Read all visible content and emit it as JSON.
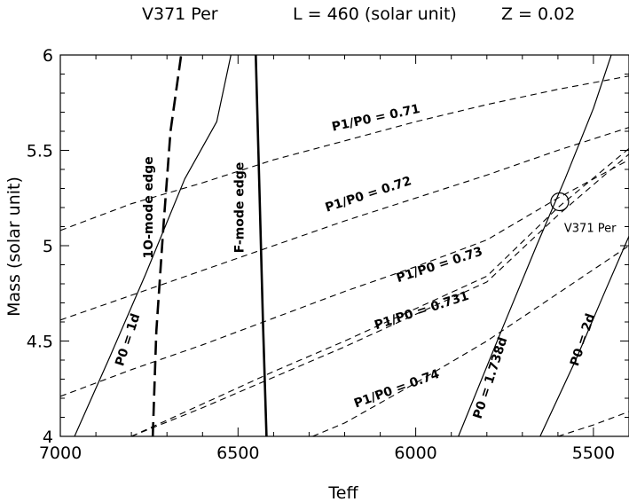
{
  "chart_data": {
    "type": "line",
    "title_parts": [
      "V371 Per",
      "L = 460 (solar unit)",
      "Z = 0.02"
    ],
    "xlabel": "Teff",
    "ylabel": "Mass (solar unit)",
    "xlim": [
      7000,
      5400
    ],
    "ylim": [
      4,
      6
    ],
    "x_reversed": true,
    "x_ticks": [
      7000,
      6500,
      6000,
      5500
    ],
    "x_tick_labels": [
      "7000",
      "6500",
      "6000",
      "5500"
    ],
    "y_ticks": [
      4,
      4.5,
      5,
      5.5,
      6
    ],
    "y_tick_labels": [
      "4",
      "4.5",
      "5",
      "5.5",
      "6"
    ],
    "grid": false,
    "series": [
      {
        "name": "P1/P0 = 0.71",
        "style": "dashed",
        "x": [
          7000,
          6800,
          6600,
          6400,
          6200,
          6000,
          5800,
          5600,
          5400
        ],
        "y": [
          5.08,
          5.22,
          5.33,
          5.45,
          5.55,
          5.65,
          5.74,
          5.82,
          5.89
        ]
      },
      {
        "name": "P1/P0 = 0.72",
        "style": "dashed",
        "x": [
          7000,
          6800,
          6600,
          6400,
          6200,
          6000,
          5800,
          5600,
          5400
        ],
        "y": [
          4.61,
          4.74,
          4.87,
          5.0,
          5.13,
          5.25,
          5.37,
          5.5,
          5.62
        ]
      },
      {
        "name": "P1/P0 = 0.73",
        "style": "dashed",
        "x": [
          7000,
          6800,
          6600,
          6400,
          6200,
          6000,
          5800,
          5600,
          5400
        ],
        "y": [
          4.21,
          4.35,
          4.48,
          4.62,
          4.76,
          4.89,
          5.03,
          5.25,
          5.45
        ]
      },
      {
        "name": "P1/P0 = 0.731",
        "style": "dashed",
        "x": [
          6800,
          6600,
          6400,
          6200,
          6000,
          5800,
          5600,
          5400
        ],
        "y": [
          4.0,
          4.17,
          4.34,
          4.5,
          4.67,
          4.84,
          5.2,
          5.51
        ]
      },
      {
        "name": "P1/P0 = 0.731 (companion)",
        "style": "dashed",
        "x": [
          6800,
          6600,
          6400,
          6200,
          6000,
          5800,
          5600,
          5400
        ],
        "y": [
          4.0,
          4.15,
          4.31,
          4.47,
          4.64,
          4.81,
          5.16,
          5.48
        ]
      },
      {
        "name": "P1/P0 = 0.74",
        "style": "dashed",
        "x": [
          6290,
          6200,
          6000,
          5800,
          5600,
          5400
        ],
        "y": [
          4.0,
          4.07,
          4.28,
          4.5,
          4.75,
          5.0
        ]
      },
      {
        "name": "P1/P0 = 0.74 (lower)",
        "style": "dashed",
        "x": [
          5600,
          5500,
          5400
        ],
        "y": [
          4.0,
          4.06,
          4.13
        ]
      },
      {
        "name": "P0 = 1d",
        "style": "solid",
        "x": [
          6960,
          6860,
          6760,
          6650,
          6560,
          6520
        ],
        "y": [
          4.0,
          4.42,
          4.85,
          5.35,
          5.65,
          6.0
        ]
      },
      {
        "name": "P0 = 1.738d",
        "style": "solid",
        "x": [
          5880,
          5760,
          5660,
          5580,
          5500,
          5450
        ],
        "y": [
          4.0,
          4.55,
          5.0,
          5.35,
          5.72,
          6.0
        ]
      },
      {
        "name": "P0 = 2d",
        "style": "solid",
        "x": [
          5650,
          5550,
          5470,
          5400
        ],
        "y": [
          4.0,
          4.4,
          4.75,
          5.05
        ]
      },
      {
        "name": "1O-mode edge",
        "style": "long-dashed-bold",
        "x": [
          6740,
          6730,
          6710,
          6690,
          6660
        ],
        "y": [
          4.0,
          4.55,
          5.1,
          5.6,
          6.0
        ]
      },
      {
        "name": "F-mode edge",
        "style": "solid-bold",
        "x": [
          6420,
          6430,
          6440,
          6450
        ],
        "y": [
          4.0,
          4.6,
          5.3,
          6.0
        ]
      }
    ],
    "point": {
      "name": "V371 Per",
      "x": 5595,
      "y": 5.23
    },
    "annotations": [
      {
        "text": "P1/P0 = 0.71",
        "x": 6110,
        "y": 5.65,
        "angle": -12
      },
      {
        "text": "P1/P0 = 0.72",
        "x": 6130,
        "y": 5.25,
        "angle": -18
      },
      {
        "text": "P1/P0 = 0.73",
        "x": 5930,
        "y": 4.88,
        "angle": -18
      },
      {
        "text": "P1/P0 = 0.731",
        "x": 5980,
        "y": 4.64,
        "angle": -18
      },
      {
        "text": "P1/P0 = 0.74",
        "x": 6050,
        "y": 4.23,
        "angle": -20
      },
      {
        "text": "P0 = 1d",
        "x": 6800,
        "y": 4.5,
        "angle": -72
      },
      {
        "text": "P0 = 1.738d",
        "x": 5780,
        "y": 4.3,
        "angle": -72
      },
      {
        "text": "P0 = 2d",
        "x": 5520,
        "y": 4.5,
        "angle": -72
      },
      {
        "text": "1O-mode edge",
        "x": 6740,
        "y": 5.2,
        "angle": -90
      },
      {
        "text": "F-mode edge",
        "x": 6485,
        "y": 5.2,
        "angle": -90
      }
    ],
    "colors": {
      "line": "#000000",
      "background": "#ffffff"
    }
  }
}
